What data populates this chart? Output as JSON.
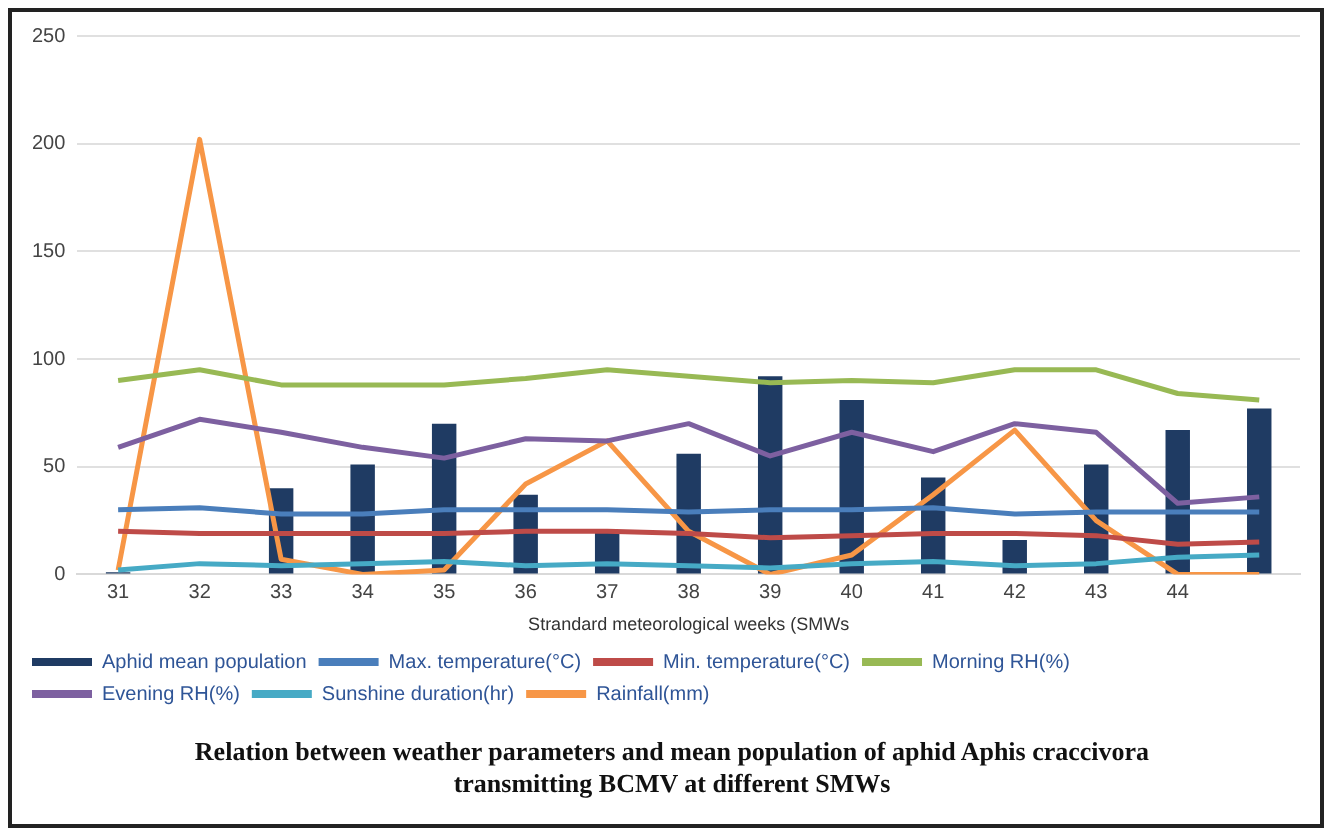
{
  "chart_data": {
    "type": "bar",
    "title": "Relation between weather parameters and mean population of aphid Aphis craccivora transmitting BCMV at different SMWs",
    "xlabel": "Strandard meteorological weeks (SMWs",
    "categories": [
      "31",
      "32",
      "33",
      "34",
      "35",
      "36",
      "37",
      "38",
      "39",
      "40",
      "41",
      "42",
      "43",
      "44",
      null
    ],
    "series": [
      {
        "name": "Aphid mean population",
        "color": "#1f3b63",
        "values": [
          1,
          0,
          40,
          51,
          70,
          37,
          20,
          56,
          92,
          81,
          45,
          16,
          51,
          67,
          77
        ]
      },
      {
        "name": "Max. temperature(°C)",
        "type": "line",
        "color": "#4a7ebb",
        "values": [
          30,
          31,
          28,
          28,
          30,
          30,
          30,
          29,
          30,
          30,
          31,
          28,
          29,
          29,
          29
        ]
      },
      {
        "name": "Min. temperature(°C)",
        "type": "line",
        "color": "#be4b48",
        "values": [
          20,
          19,
          19,
          19,
          19,
          20,
          20,
          19,
          17,
          18,
          19,
          19,
          18,
          14,
          15
        ]
      },
      {
        "name": "Morning RH(%)",
        "type": "line",
        "color": "#98b954",
        "values": [
          90,
          95,
          88,
          88,
          88,
          91,
          95,
          92,
          89,
          90,
          89,
          95,
          95,
          84,
          81
        ]
      },
      {
        "name": "Evening RH(%)",
        "type": "line",
        "color": "#7d60a0",
        "values": [
          59,
          72,
          66,
          59,
          54,
          63,
          62,
          70,
          55,
          66,
          57,
          70,
          66,
          33,
          36
        ]
      },
      {
        "name": "Sunshine duration(hr)",
        "type": "line",
        "color": "#46aac5",
        "values": [
          2,
          5,
          4,
          5,
          6,
          4,
          5,
          4,
          3,
          5,
          6,
          4,
          5,
          8,
          9
        ]
      },
      {
        "name": "Rainfall(mm)",
        "type": "line",
        "color": "#f79646",
        "values": [
          2,
          202,
          7,
          0,
          2,
          42,
          62,
          20,
          0,
          9,
          37,
          67,
          25,
          0,
          0
        ]
      }
    ],
    "ylim": [
      0,
      250
    ],
    "yticks": [
      0,
      50,
      100,
      150,
      200,
      250
    ],
    "grid": "y",
    "legend": "bottom",
    "marker": "none",
    "line_style": "solid"
  }
}
